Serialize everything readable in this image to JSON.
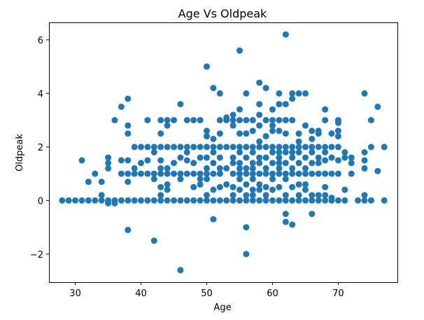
{
  "chart_data": {
    "type": "scatter",
    "title": "Age Vs Oldpeak",
    "xlabel": "Age",
    "ylabel": "Oldpeak",
    "xlim": [
      26,
      79
    ],
    "ylim": [
      -3.05,
      6.65
    ],
    "xticks": [
      30,
      40,
      50,
      60,
      70
    ],
    "yticks": [
      -2,
      0,
      2,
      4,
      6
    ],
    "ytick_labels": [
      "−2",
      "0",
      "2",
      "4",
      "6"
    ],
    "grid": false,
    "legend": "none",
    "marker_color": "#1f77b4",
    "points": [
      [
        28,
        0
      ],
      [
        29,
        0
      ],
      [
        30,
        0
      ],
      [
        31,
        0
      ],
      [
        31,
        1.5
      ],
      [
        32,
        0
      ],
      [
        32,
        0.7
      ],
      [
        33,
        0
      ],
      [
        33,
        1.0
      ],
      [
        34,
        0
      ],
      [
        34,
        0.2
      ],
      [
        34,
        0.7
      ],
      [
        35,
        0
      ],
      [
        35,
        -0.1
      ],
      [
        35,
        1.2
      ],
      [
        35,
        1.4
      ],
      [
        35,
        1.6
      ],
      [
        36,
        0
      ],
      [
        36,
        -0.1
      ],
      [
        36,
        3.0
      ],
      [
        37,
        0
      ],
      [
        37,
        1.0
      ],
      [
        37,
        1.5
      ],
      [
        37,
        3.5
      ],
      [
        38,
        0
      ],
      [
        38,
        0.7
      ],
      [
        38,
        1.0
      ],
      [
        38,
        1.5
      ],
      [
        38,
        2.5
      ],
      [
        38,
        2.8
      ],
      [
        38,
        3.8
      ],
      [
        38,
        -1.1
      ],
      [
        39,
        0
      ],
      [
        39,
        1.0
      ],
      [
        39,
        1.2
      ],
      [
        39,
        2.0
      ],
      [
        40,
        0
      ],
      [
        40,
        1.0
      ],
      [
        40,
        1.4
      ],
      [
        40,
        2.0
      ],
      [
        41,
        0
      ],
      [
        41,
        1.0
      ],
      [
        41,
        1.5
      ],
      [
        41,
        2.0
      ],
      [
        41,
        3.0
      ],
      [
        42,
        0
      ],
      [
        42,
        0.8
      ],
      [
        42,
        1.0
      ],
      [
        42,
        1.8
      ],
      [
        42,
        2.0
      ],
      [
        42,
        -1.5
      ],
      [
        43,
        0
      ],
      [
        43,
        0.5
      ],
      [
        43,
        1.0
      ],
      [
        43,
        1.2
      ],
      [
        43,
        1.5
      ],
      [
        43,
        2.0
      ],
      [
        43,
        2.5
      ],
      [
        43,
        3.0
      ],
      [
        43,
        0.2
      ],
      [
        44,
        0
      ],
      [
        44,
        0.4
      ],
      [
        44,
        0.6
      ],
      [
        44,
        1.0
      ],
      [
        44,
        1.2
      ],
      [
        44,
        2.0
      ],
      [
        44,
        2.8
      ],
      [
        44,
        3.0
      ],
      [
        45,
        0
      ],
      [
        45,
        1.0
      ],
      [
        45,
        1.4
      ],
      [
        45,
        2.0
      ],
      [
        45,
        3.0
      ],
      [
        46,
        0
      ],
      [
        46,
        0.8
      ],
      [
        46,
        1.0
      ],
      [
        46,
        1.6
      ],
      [
        46,
        2.0
      ],
      [
        46,
        3.6
      ],
      [
        46,
        -2.6
      ],
      [
        47,
        0
      ],
      [
        47,
        1.0
      ],
      [
        47,
        1.5
      ],
      [
        47,
        1.8
      ],
      [
        47,
        2.0
      ],
      [
        47,
        3.0
      ],
      [
        48,
        0
      ],
      [
        48,
        0.5
      ],
      [
        48,
        1.0
      ],
      [
        48,
        1.4
      ],
      [
        48,
        2.0
      ],
      [
        48,
        3.0
      ],
      [
        49,
        0
      ],
      [
        49,
        0.6
      ],
      [
        49,
        0.8
      ],
      [
        49,
        1.0
      ],
      [
        49,
        1.6
      ],
      [
        49,
        2.0
      ],
      [
        49,
        3.0
      ],
      [
        50,
        0
      ],
      [
        50,
        0.2
      ],
      [
        50,
        0.8
      ],
      [
        50,
        1.0
      ],
      [
        50,
        1.2
      ],
      [
        50,
        1.6
      ],
      [
        50,
        2.0
      ],
      [
        50,
        2.4
      ],
      [
        50,
        2.6
      ],
      [
        50,
        5.0
      ],
      [
        51,
        0
      ],
      [
        51,
        0.4
      ],
      [
        51,
        1.0
      ],
      [
        51,
        1.4
      ],
      [
        51,
        1.8
      ],
      [
        51,
        2.0
      ],
      [
        51,
        2.3
      ],
      [
        51,
        4.2
      ],
      [
        51,
        -0.7
      ],
      [
        52,
        0
      ],
      [
        52,
        0.5
      ],
      [
        52,
        1.0
      ],
      [
        52,
        1.2
      ],
      [
        52,
        1.6
      ],
      [
        52,
        2.0
      ],
      [
        52,
        2.5
      ],
      [
        52,
        3.0
      ],
      [
        52,
        4.0
      ],
      [
        53,
        0
      ],
      [
        53,
        0.6
      ],
      [
        53,
        1.2
      ],
      [
        53,
        2.0
      ],
      [
        53,
        3.0
      ],
      [
        53,
        3.1
      ],
      [
        54,
        0
      ],
      [
        54,
        0.2
      ],
      [
        54,
        0.5
      ],
      [
        54,
        1.0
      ],
      [
        54,
        1.4
      ],
      [
        54,
        1.6
      ],
      [
        54,
        2.0
      ],
      [
        54,
        2.8
      ],
      [
        54,
        3.0
      ],
      [
        54,
        3.2
      ],
      [
        55,
        0
      ],
      [
        55,
        0.4
      ],
      [
        55,
        0.8
      ],
      [
        55,
        1.0
      ],
      [
        55,
        1.2
      ],
      [
        55,
        1.4
      ],
      [
        55,
        1.8
      ],
      [
        55,
        2.0
      ],
      [
        55,
        2.5
      ],
      [
        55,
        3.0
      ],
      [
        55,
        3.4
      ],
      [
        55,
        5.6
      ],
      [
        56,
        0
      ],
      [
        56,
        0.2
      ],
      [
        56,
        0.6
      ],
      [
        56,
        1.0
      ],
      [
        56,
        1.2
      ],
      [
        56,
        1.6
      ],
      [
        56,
        2.0
      ],
      [
        56,
        2.5
      ],
      [
        56,
        3.0
      ],
      [
        56,
        4.0
      ],
      [
        56,
        -1.0
      ],
      [
        56,
        -2.0
      ],
      [
        57,
        0
      ],
      [
        57,
        0.2
      ],
      [
        57,
        0.4
      ],
      [
        57,
        0.8
      ],
      [
        57,
        1.0
      ],
      [
        57,
        1.2
      ],
      [
        57,
        1.4
      ],
      [
        57,
        1.8
      ],
      [
        57,
        2.0
      ],
      [
        57,
        2.6
      ],
      [
        57,
        3.0
      ],
      [
        58,
        0
      ],
      [
        58,
        0.4
      ],
      [
        58,
        0.6
      ],
      [
        58,
        1.0
      ],
      [
        58,
        1.4
      ],
      [
        58,
        1.6
      ],
      [
        58,
        2.0
      ],
      [
        58,
        2.2
      ],
      [
        58,
        2.8
      ],
      [
        58,
        3.2
      ],
      [
        58,
        3.6
      ],
      [
        58,
        4.4
      ],
      [
        59,
        0
      ],
      [
        59,
        0.2
      ],
      [
        59,
        0.5
      ],
      [
        59,
        1.0
      ],
      [
        59,
        1.2
      ],
      [
        59,
        1.6
      ],
      [
        59,
        2.0
      ],
      [
        59,
        2.4
      ],
      [
        59,
        3.0
      ],
      [
        59,
        4.2
      ],
      [
        60,
        0
      ],
      [
        60,
        0.4
      ],
      [
        60,
        0.8
      ],
      [
        60,
        1.0
      ],
      [
        60,
        1.4
      ],
      [
        60,
        1.8
      ],
      [
        60,
        2.0
      ],
      [
        60,
        2.6
      ],
      [
        60,
        2.8
      ],
      [
        60,
        3.0
      ],
      [
        60,
        3.4
      ],
      [
        61,
        0
      ],
      [
        61,
        0.5
      ],
      [
        61,
        1.0
      ],
      [
        61,
        1.2
      ],
      [
        61,
        1.4
      ],
      [
        61,
        1.6
      ],
      [
        61,
        1.8
      ],
      [
        61,
        2.0
      ],
      [
        61,
        2.6
      ],
      [
        61,
        3.0
      ],
      [
        61,
        3.6
      ],
      [
        61,
        4.0
      ],
      [
        62,
        0
      ],
      [
        62,
        0.2
      ],
      [
        62,
        0.8
      ],
      [
        62,
        1.0
      ],
      [
        62,
        1.4
      ],
      [
        62,
        1.8
      ],
      [
        62,
        2.0
      ],
      [
        62,
        2.5
      ],
      [
        62,
        3.0
      ],
      [
        62,
        3.6
      ],
      [
        62,
        6.2
      ],
      [
        62,
        -0.5
      ],
      [
        62,
        -0.8
      ],
      [
        63,
        0
      ],
      [
        63,
        0.5
      ],
      [
        63,
        1.0
      ],
      [
        63,
        1.2
      ],
      [
        63,
        1.6
      ],
      [
        63,
        1.8
      ],
      [
        63,
        2.0
      ],
      [
        63,
        3.0
      ],
      [
        63,
        3.8
      ],
      [
        63,
        4.0
      ],
      [
        63,
        -0.9
      ],
      [
        64,
        0
      ],
      [
        64,
        0.2
      ],
      [
        64,
        0.6
      ],
      [
        64,
        1.0
      ],
      [
        64,
        1.4
      ],
      [
        64,
        1.8
      ],
      [
        64,
        2.0
      ],
      [
        64,
        2.2
      ],
      [
        64,
        2.5
      ],
      [
        64,
        4.0
      ],
      [
        65,
        0
      ],
      [
        65,
        0.4
      ],
      [
        65,
        0.6
      ],
      [
        65,
        1.0
      ],
      [
        65,
        1.2
      ],
      [
        65,
        1.6
      ],
      [
        65,
        2.0
      ],
      [
        65,
        2.8
      ],
      [
        65,
        4.0
      ],
      [
        66,
        0
      ],
      [
        66,
        0.2
      ],
      [
        66,
        1.0
      ],
      [
        66,
        1.4
      ],
      [
        66,
        1.8
      ],
      [
        66,
        2.0
      ],
      [
        66,
        2.3
      ],
      [
        66,
        2.6
      ],
      [
        66,
        -0.5
      ],
      [
        67,
        0
      ],
      [
        67,
        0.2
      ],
      [
        67,
        1.0
      ],
      [
        67,
        1.4
      ],
      [
        67,
        1.6
      ],
      [
        67,
        2.0
      ],
      [
        67,
        2.5
      ],
      [
        67,
        2.6
      ],
      [
        68,
        0
      ],
      [
        68,
        0.2
      ],
      [
        68,
        0.5
      ],
      [
        68,
        1.0
      ],
      [
        68,
        1.5
      ],
      [
        68,
        1.8
      ],
      [
        68,
        2.0
      ],
      [
        68,
        3.0
      ],
      [
        68,
        3.4
      ],
      [
        69,
        0
      ],
      [
        69,
        0.1
      ],
      [
        69,
        1.0
      ],
      [
        69,
        1.6
      ],
      [
        69,
        2.0
      ],
      [
        69,
        2.5
      ],
      [
        70,
        0
      ],
      [
        70,
        1.0
      ],
      [
        70,
        1.5
      ],
      [
        70,
        2.0
      ],
      [
        70,
        2.4
      ],
      [
        70,
        2.6
      ],
      [
        70,
        2.9
      ],
      [
        70,
        3.0
      ],
      [
        71,
        0
      ],
      [
        71,
        0.4
      ],
      [
        71,
        1.6
      ],
      [
        71,
        1.8
      ],
      [
        72,
        1.0
      ],
      [
        72,
        1.4
      ],
      [
        72,
        1.6
      ],
      [
        73,
        0
      ],
      [
        74,
        0
      ],
      [
        74,
        0.2
      ],
      [
        74,
        1.2
      ],
      [
        74,
        1.5
      ],
      [
        74,
        1.8
      ],
      [
        74,
        4.0
      ],
      [
        75,
        0
      ],
      [
        75,
        2.0
      ],
      [
        75,
        3.0
      ],
      [
        76,
        1.1
      ],
      [
        76,
        3.5
      ],
      [
        77,
        0
      ],
      [
        77,
        2.0
      ]
    ]
  }
}
